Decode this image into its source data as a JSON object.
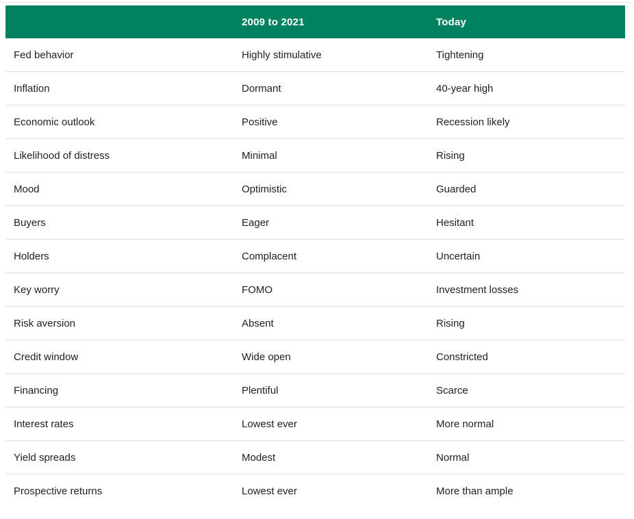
{
  "table": {
    "header": {
      "col1": "",
      "col2": "2009 to 2021",
      "col3": "Today"
    },
    "rows": [
      {
        "label": "Fed behavior",
        "past": "Highly stimulative",
        "today": "Tightening"
      },
      {
        "label": "Inflation",
        "past": "Dormant",
        "today": "40-year high"
      },
      {
        "label": "Economic outlook",
        "past": "Positive",
        "today": "Recession likely"
      },
      {
        "label": "Likelihood of distress",
        "past": "Minimal",
        "today": "Rising"
      },
      {
        "label": "Mood",
        "past": "Optimistic",
        "today": "Guarded"
      },
      {
        "label": "Buyers",
        "past": "Eager",
        "today": "Hesitant"
      },
      {
        "label": "Holders",
        "past": "Complacent",
        "today": "Uncertain"
      },
      {
        "label": "Key worry",
        "past": "FOMO",
        "today": "Investment losses"
      },
      {
        "label": "Risk aversion",
        "past": "Absent",
        "today": "Rising"
      },
      {
        "label": "Credit window",
        "past": "Wide open",
        "today": "Constricted"
      },
      {
        "label": "Financing",
        "past": "Plentiful",
        "today": "Scarce"
      },
      {
        "label": "Interest rates",
        "past": "Lowest ever",
        "today": "More normal"
      },
      {
        "label": "Yield spreads",
        "past": "Modest",
        "today": "Normal"
      },
      {
        "label": "Prospective returns",
        "past": "Lowest ever",
        "today": "More than ample"
      }
    ]
  },
  "colors": {
    "header_bg": "#008160",
    "header_text": "#ffffff",
    "body_text": "#202124",
    "divider": "#e0e0e0"
  }
}
